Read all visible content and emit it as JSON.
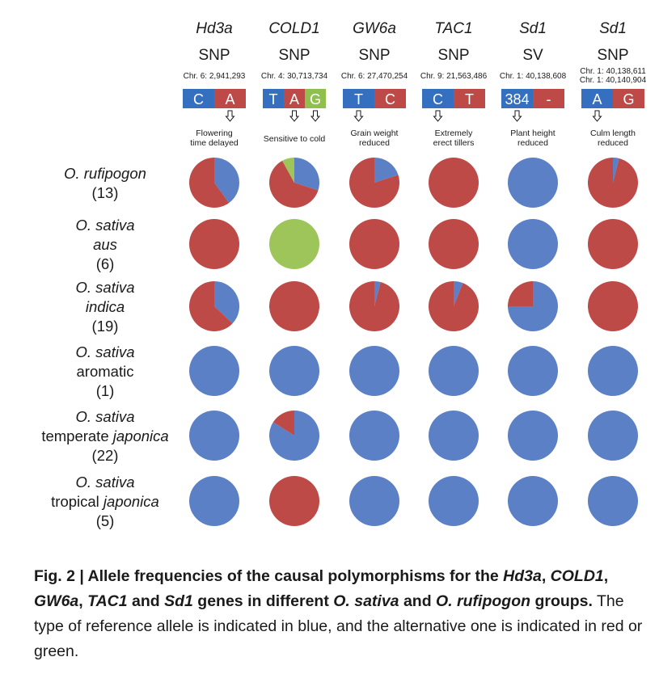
{
  "chart_data": {
    "type": "pie",
    "title": "Allele frequencies of the causal polymorphisms",
    "colors": {
      "reference": "#5b80c5",
      "alt_red": "#bd4a47",
      "alt_green": "#9dc55a",
      "text": "#1a1a1a"
    },
    "genes": [
      {
        "name": "Hd3a",
        "type": "SNP",
        "position": [
          "Chr. 6: 2,941,293"
        ],
        "alleles": [
          {
            "label": "C",
            "color": "#3470bf"
          },
          {
            "label": "A",
            "color": "#bd4a47"
          }
        ],
        "arrows": [
          1
        ],
        "effect": [
          "Flowering",
          "time delayed"
        ]
      },
      {
        "name": "COLD1",
        "type": "SNP",
        "position": [
          "Chr. 4: 30,713,734"
        ],
        "alleles": [
          {
            "label": "T",
            "color": "#3470bf"
          },
          {
            "label": "A",
            "color": "#bd4a47"
          },
          {
            "label": "G",
            "color": "#8fc04f"
          }
        ],
        "arrows": [
          1,
          2
        ],
        "effect": [
          "Sensitive to cold"
        ]
      },
      {
        "name": "GW6a",
        "type": "SNP",
        "position": [
          "Chr. 6: 27,470,254"
        ],
        "alleles": [
          {
            "label": "T",
            "color": "#3470bf"
          },
          {
            "label": "C",
            "color": "#bd4a47"
          }
        ],
        "arrows": [
          0
        ],
        "effect": [
          "Grain weight",
          "reduced"
        ]
      },
      {
        "name": "TAC1",
        "type": "SNP",
        "position": [
          "Chr. 9: 21,563,486"
        ],
        "alleles": [
          {
            "label": "C",
            "color": "#3470bf"
          },
          {
            "label": "T",
            "color": "#bd4a47"
          }
        ],
        "arrows": [
          0
        ],
        "effect": [
          "Extremely",
          "erect tillers"
        ]
      },
      {
        "name": "Sd1",
        "type": "SV",
        "position": [
          "Chr. 1: 40,138,608"
        ],
        "alleles": [
          {
            "label": "384",
            "color": "#3470bf"
          },
          {
            "label": "-",
            "color": "#bd4a47"
          }
        ],
        "arrows": [
          0
        ],
        "effect": [
          "Plant height",
          "reduced"
        ]
      },
      {
        "name": "Sd1",
        "type": "SNP",
        "position": [
          "Chr. 1: 40,138,611",
          "Chr. 1: 40,140,904"
        ],
        "alleles": [
          {
            "label": "A",
            "color": "#3470bf"
          },
          {
            "label": "G",
            "color": "#bd4a47"
          }
        ],
        "arrows": [
          0
        ],
        "effect": [
          "Culm length",
          "reduced"
        ]
      }
    ],
    "groups": [
      {
        "lines": [
          {
            "text": "O. rufipogon",
            "italic": true
          },
          {
            "text": "(13)",
            "italic": false
          }
        ],
        "pies": [
          [
            0.4,
            0.6,
            0
          ],
          [
            0.3,
            0.62,
            0.08
          ],
          [
            0.2,
            0.8,
            0
          ],
          [
            0,
            1,
            0
          ],
          [
            1,
            0,
            0
          ],
          [
            0.04,
            0.96,
            0
          ]
        ]
      },
      {
        "lines": [
          {
            "text": "O. sativa",
            "italic": true
          },
          {
            "text": "aus",
            "italic": true
          },
          {
            "text": "(6)",
            "italic": false
          }
        ],
        "pies": [
          [
            0,
            1,
            0
          ],
          [
            0,
            0,
            1
          ],
          [
            0,
            1,
            0
          ],
          [
            0,
            1,
            0
          ],
          [
            1,
            0,
            0
          ],
          [
            0,
            1,
            0
          ]
        ]
      },
      {
        "lines": [
          {
            "text": "O. sativa",
            "italic": true
          },
          {
            "text": "indica",
            "italic": true
          },
          {
            "text": "(19)",
            "italic": false
          }
        ],
        "pies": [
          [
            0.37,
            0.63,
            0
          ],
          [
            0,
            1,
            0
          ],
          [
            0.04,
            0.96,
            0
          ],
          [
            0.06,
            0.94,
            0
          ],
          [
            0.75,
            0.25,
            0
          ],
          [
            0,
            1,
            0
          ]
        ]
      },
      {
        "lines": [
          {
            "text": "O. sativa",
            "italic": true
          },
          {
            "text": "aromatic",
            "italic": false
          },
          {
            "text": "(1)",
            "italic": false
          }
        ],
        "pies": [
          [
            1,
            0,
            0
          ],
          [
            1,
            0,
            0
          ],
          [
            1,
            0,
            0
          ],
          [
            1,
            0,
            0
          ],
          [
            1,
            0,
            0
          ],
          [
            1,
            0,
            0
          ]
        ]
      },
      {
        "lines": [
          {
            "text": "O. sativa",
            "italic": true
          },
          {
            "text": "temperate ",
            "italic": false,
            "suffix": "japonica"
          },
          {
            "text": "(22)",
            "italic": false
          }
        ],
        "pies": [
          [
            1,
            0,
            0
          ],
          [
            0.84,
            0.16,
            0
          ],
          [
            1,
            0,
            0
          ],
          [
            1,
            0,
            0
          ],
          [
            1,
            0,
            0
          ],
          [
            1,
            0,
            0
          ]
        ]
      },
      {
        "lines": [
          {
            "text": "O. sativa",
            "italic": true
          },
          {
            "text": "tropical ",
            "italic": false,
            "suffix": "japonica"
          },
          {
            "text": "(5)",
            "italic": false
          }
        ],
        "pies": [
          [
            1,
            0,
            0
          ],
          [
            0,
            1,
            0
          ],
          [
            1,
            0,
            0
          ],
          [
            1,
            0,
            0
          ],
          [
            1,
            0,
            0
          ],
          [
            1,
            0,
            0
          ]
        ]
      }
    ]
  },
  "caption": {
    "fig": "Fig. 2 | ",
    "bold_parts": [
      {
        "t": "Allele frequencies of the causal polymorphisms for the ",
        "i": false
      },
      {
        "t": "Hd3a",
        "i": true
      },
      {
        "t": ", ",
        "i": false
      },
      {
        "t": "COLD1",
        "i": true
      },
      {
        "t": ", ",
        "i": false
      },
      {
        "t": "GW6a",
        "i": true
      },
      {
        "t": ", ",
        "i": false
      },
      {
        "t": "TAC1",
        "i": true
      },
      {
        "t": " and ",
        "i": false
      },
      {
        "t": "Sd1",
        "i": true
      },
      {
        "t": " genes in different ",
        "i": false
      },
      {
        "t": "O. sativa",
        "i": true
      },
      {
        "t": " and ",
        "i": false
      },
      {
        "t": "O. rufipogon",
        "i": true
      },
      {
        "t": " groups.",
        "i": false
      }
    ],
    "rest": " The type of reference allele is indicated in blue, and the alternative one is indicated in red or green."
  }
}
